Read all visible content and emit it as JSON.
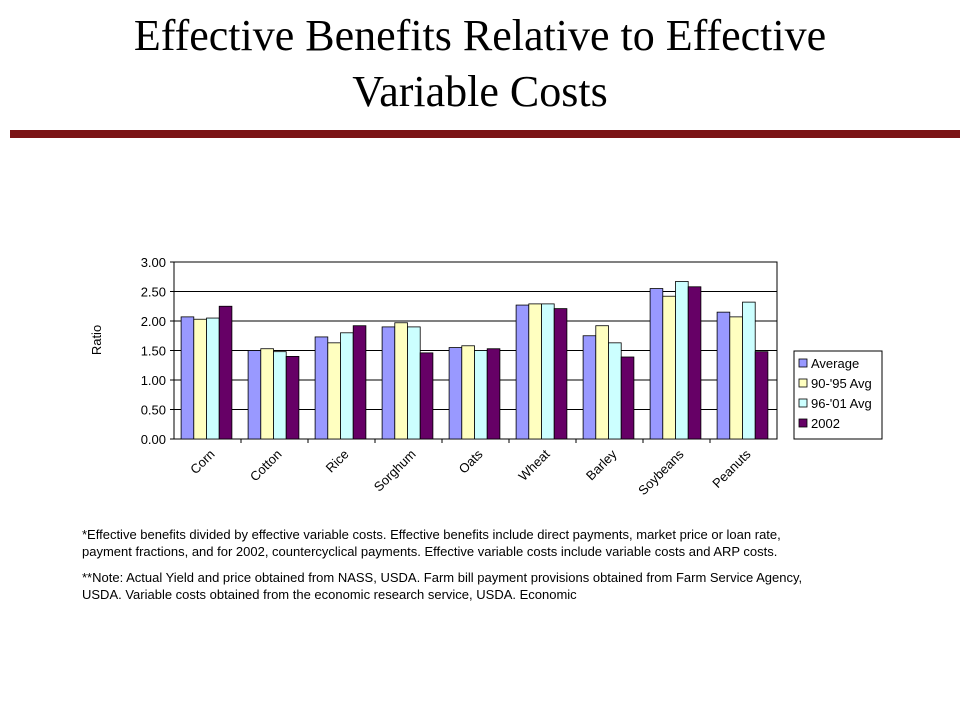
{
  "slide": {
    "title_line1": "Effective Benefits Relative to Effective",
    "title_line2": "Variable Costs",
    "rule_color": "#7b1416"
  },
  "chart_data": {
    "type": "bar",
    "title": "",
    "xlabel": "",
    "ylabel": "Ratio",
    "ylim": [
      0,
      3
    ],
    "yticks": [
      "0.00",
      "0.50",
      "1.00",
      "1.50",
      "2.00",
      "2.50",
      "3.00"
    ],
    "grid": true,
    "legend_position": "right",
    "categories": [
      "Corn",
      "Cotton",
      "Rice",
      "Sorghum",
      "Oats",
      "Wheat",
      "Barley",
      "Soybeans",
      "Peanuts"
    ],
    "series": [
      {
        "name": "Average",
        "color": "#9999ff",
        "values": [
          2.07,
          1.5,
          1.73,
          1.9,
          1.55,
          2.27,
          1.75,
          2.55,
          2.15
        ]
      },
      {
        "name": "90-'95 Avg",
        "color": "#ffffc0",
        "values": [
          2.03,
          1.53,
          1.63,
          1.97,
          1.58,
          2.29,
          1.92,
          2.42,
          2.07
        ]
      },
      {
        "name": "96-'01 Avg",
        "color": "#ccffff",
        "values": [
          2.05,
          1.48,
          1.8,
          1.9,
          1.5,
          2.29,
          1.63,
          2.67,
          2.32
        ]
      },
      {
        "name": "2002",
        "color": "#660066",
        "values": [
          2.25,
          1.4,
          1.92,
          1.46,
          1.53,
          2.21,
          1.39,
          2.58,
          1.48
        ]
      }
    ]
  },
  "footnotes": {
    "note1_line1": "*Effective benefits divided by effective variable costs.  Effective benefits include direct payments, market price or loan rate,",
    "note1_line2": "payment fractions, and for 2002, countercyclical payments. Effective variable costs include variable costs and ARP costs.",
    "note2_line1": "**Note:  Actual Yield and price obtained from NASS, USDA.  Farm bill payment provisions obtained from Farm Service Agency,",
    "note2_line2": "USDA.  Variable costs obtained from the economic research service, USDA.  Economic"
  }
}
